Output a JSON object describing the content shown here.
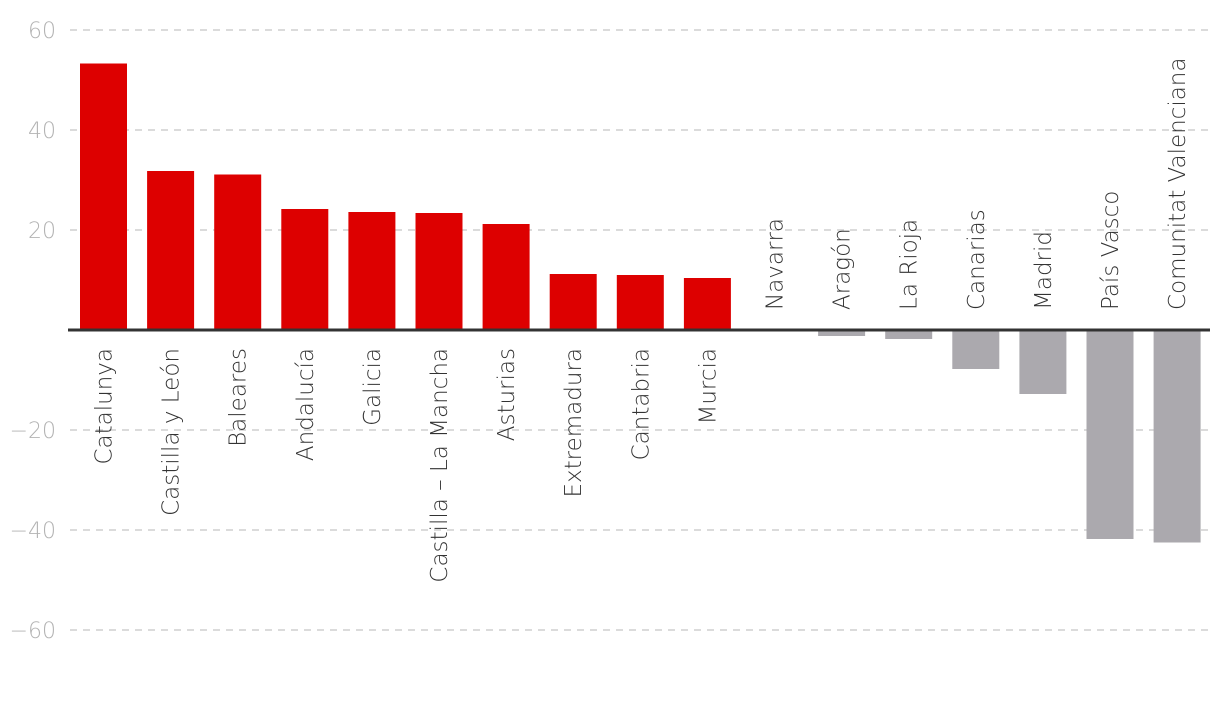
{
  "chart_data": {
    "type": "bar",
    "title": "",
    "xlabel": "",
    "ylabel": "",
    "ylim": [
      -60,
      60
    ],
    "yticks": [
      60,
      40,
      20,
      -20,
      -40,
      -60
    ],
    "yticks_labels": [
      "60",
      "40",
      "20",
      "−20",
      "−40",
      "−60"
    ],
    "grid": true,
    "categories": [
      "Catalunya",
      "Castilla y León",
      "Baleares",
      "Andalucía",
      "Galicia",
      "Castilla – La Mancha",
      "Asturias",
      "Extremadura",
      "Cantabria",
      "Murcia",
      "Navarra",
      "Aragón",
      "La Rioja",
      "Canarias",
      "Madrid",
      "País Vasco",
      "Comunitat Valenciana"
    ],
    "values": [
      53.3,
      31.8,
      31.1,
      24.2,
      23.6,
      23.4,
      21.2,
      11.2,
      11.0,
      10.4,
      0.0,
      -1.2,
      -1.8,
      -7.8,
      -12.8,
      -41.8,
      -42.5
    ],
    "colors": {
      "positive": "#dd0000",
      "negative": "#aba9ae"
    }
  }
}
